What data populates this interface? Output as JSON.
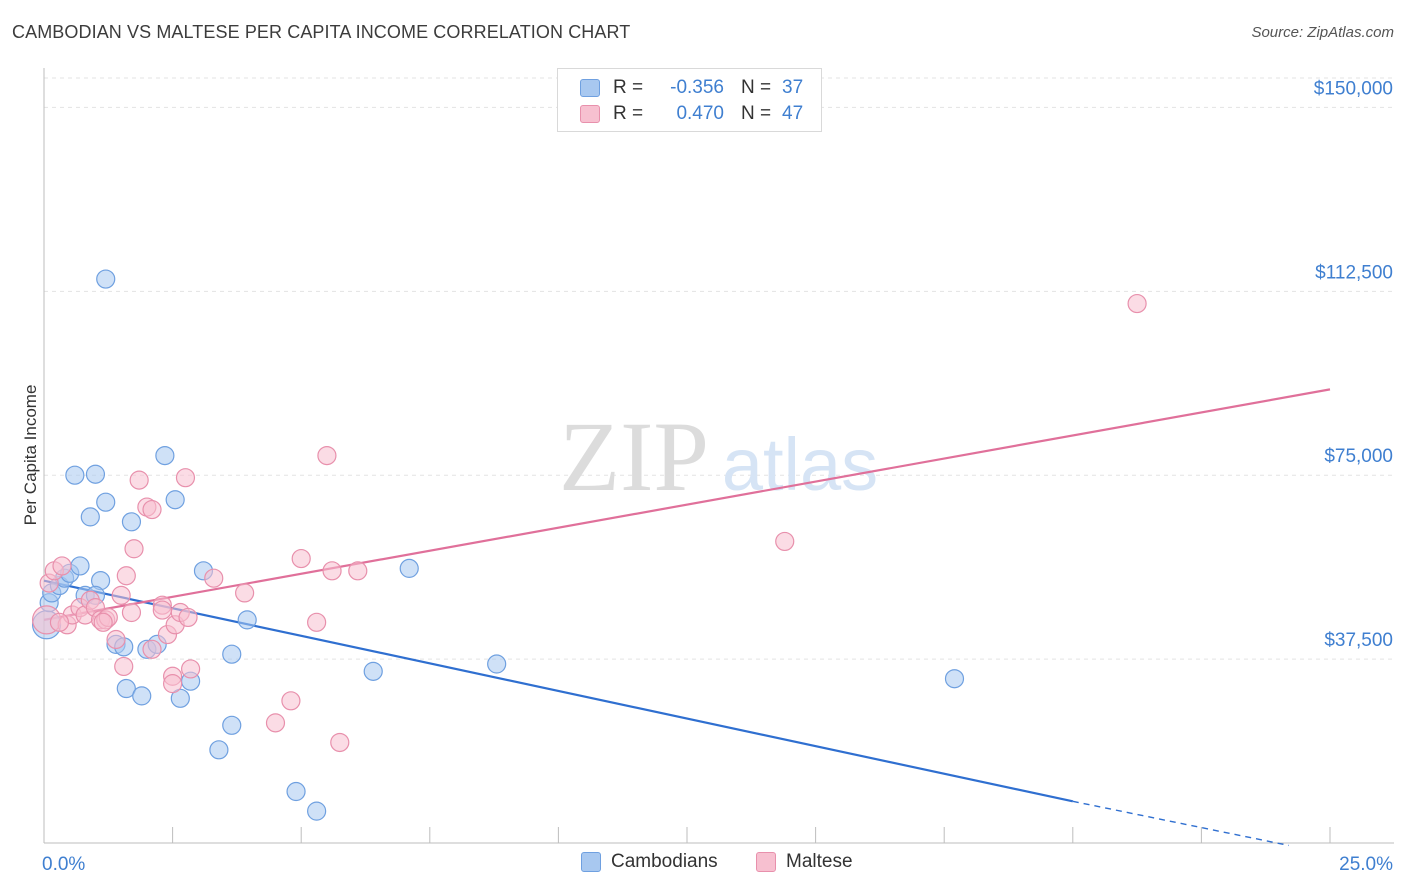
{
  "header": {
    "title": "CAMBODIAN VS MALTESE PER CAPITA INCOME CORRELATION CHART",
    "source": "Source: ZipAtlas.com"
  },
  "watermark": {
    "zip": "ZIP",
    "atlas": "atlas"
  },
  "legend": {
    "rows": [
      {
        "r_label": "R =",
        "r_value": "-0.356",
        "n_label": "N =",
        "n_value": "37",
        "color": "#a8c8f0",
        "border": "#6fa0e0"
      },
      {
        "r_label": "R =",
        "r_value": "0.470",
        "n_label": "N =",
        "n_value": "47",
        "color": "#f7c0d0",
        "border": "#e890ac"
      }
    ]
  },
  "bottom_legend": {
    "items": [
      {
        "label": "Cambodians",
        "color": "#a8c8f0",
        "border": "#6fa0e0"
      },
      {
        "label": "Maltese",
        "color": "#f7c0d0",
        "border": "#e890ac"
      }
    ]
  },
  "chart_data": {
    "type": "scatter",
    "title": "CAMBODIAN VS MALTESE PER CAPITA INCOME CORRELATION CHART",
    "xlabel": "",
    "ylabel": "Per Capita Income",
    "xlim": [
      0,
      25
    ],
    "ylim": [
      0,
      156000
    ],
    "x_tick_labels": [
      {
        "value": 0,
        "label": "0.0%"
      },
      {
        "value": 25,
        "label": "25.0%"
      }
    ],
    "y_tick_labels": [
      {
        "value": 37500,
        "label": "$37,500"
      },
      {
        "value": 75000,
        "label": "$75,000"
      },
      {
        "value": 112500,
        "label": "$112,500"
      },
      {
        "value": 150000,
        "label": "$150,000"
      }
    ],
    "x_minor_ticks": [
      2.5,
      5,
      7.5,
      10,
      12.5,
      15,
      17.5,
      20,
      22.5,
      25
    ],
    "series": [
      {
        "name": "Cambodians",
        "color": "#6fa0e0",
        "fill": "rgba(168,200,240,0.55)",
        "line_color": "#2f6fd0",
        "trend": {
          "x0": 0,
          "y0": 53500,
          "x1": 20,
          "y1": 8500,
          "dash_to_x": 24.2,
          "dash_to_y": -500
        },
        "points": [
          [
            0.05,
            44500,
            14
          ],
          [
            0.1,
            49000,
            9
          ],
          [
            0.15,
            51000,
            9
          ],
          [
            0.3,
            52500,
            9
          ],
          [
            0.4,
            54000,
            9
          ],
          [
            0.5,
            55000,
            9
          ],
          [
            0.6,
            75000,
            9
          ],
          [
            0.7,
            56500,
            9
          ],
          [
            0.8,
            50500,
            9
          ],
          [
            0.9,
            66500,
            9
          ],
          [
            1.0,
            75200,
            9
          ],
          [
            1.1,
            53500,
            9
          ],
          [
            1.2,
            69500,
            9
          ],
          [
            1.4,
            40500,
            9
          ],
          [
            1.55,
            40000,
            9
          ],
          [
            1.6,
            31500,
            9
          ],
          [
            1.7,
            65500,
            9
          ],
          [
            1.9,
            30000,
            9
          ],
          [
            2.0,
            39500,
            9
          ],
          [
            2.2,
            40500,
            9
          ],
          [
            2.35,
            79000,
            9
          ],
          [
            2.55,
            70000,
            9
          ],
          [
            2.65,
            29500,
            9
          ],
          [
            2.85,
            33000,
            9
          ],
          [
            3.1,
            55500,
            9
          ],
          [
            3.4,
            19000,
            9
          ],
          [
            3.65,
            24000,
            9
          ],
          [
            3.65,
            38500,
            9
          ],
          [
            3.95,
            45500,
            9
          ],
          [
            4.9,
            10500,
            9
          ],
          [
            5.3,
            6500,
            9
          ],
          [
            6.4,
            35000,
            9
          ],
          [
            7.1,
            56000,
            9
          ],
          [
            8.8,
            36500,
            9
          ],
          [
            17.7,
            33500,
            9
          ],
          [
            1.2,
            115000,
            9
          ],
          [
            1.0,
            50500,
            9
          ]
        ]
      },
      {
        "name": "Maltese",
        "color": "#e890ac",
        "fill": "rgba(247,192,208,0.55)",
        "line_color": "#e0709a",
        "trend": {
          "x0": 0,
          "y0": 45500,
          "x1": 25,
          "y1": 92500
        },
        "points": [
          [
            0.05,
            45500,
            14
          ],
          [
            0.1,
            53000,
            9
          ],
          [
            0.2,
            55500,
            9
          ],
          [
            0.35,
            56500,
            9
          ],
          [
            0.45,
            44500,
            9
          ],
          [
            0.55,
            46500,
            9
          ],
          [
            0.7,
            48000,
            9
          ],
          [
            0.8,
            46500,
            9
          ],
          [
            0.9,
            49500,
            9
          ],
          [
            1.0,
            48000,
            9
          ],
          [
            1.1,
            45500,
            9
          ],
          [
            1.2,
            45500,
            9
          ],
          [
            1.25,
            46000,
            9
          ],
          [
            1.4,
            41500,
            9
          ],
          [
            1.5,
            50500,
            9
          ],
          [
            1.55,
            36000,
            9
          ],
          [
            1.6,
            54500,
            9
          ],
          [
            1.7,
            47000,
            9
          ],
          [
            1.75,
            60000,
            9
          ],
          [
            1.85,
            74000,
            9
          ],
          [
            2.0,
            68500,
            9
          ],
          [
            2.1,
            39500,
            9
          ],
          [
            2.1,
            68000,
            9
          ],
          [
            2.3,
            48500,
            9
          ],
          [
            2.4,
            42500,
            9
          ],
          [
            2.5,
            34000,
            9
          ],
          [
            2.5,
            32500,
            9
          ],
          [
            2.55,
            44500,
            9
          ],
          [
            2.65,
            47000,
            9
          ],
          [
            2.75,
            74500,
            9
          ],
          [
            2.8,
            46000,
            9
          ],
          [
            2.85,
            35500,
            9
          ],
          [
            3.3,
            54000,
            9
          ],
          [
            3.9,
            51000,
            9
          ],
          [
            4.5,
            24500,
            9
          ],
          [
            4.8,
            29000,
            9
          ],
          [
            5.0,
            58000,
            9
          ],
          [
            5.3,
            45000,
            9
          ],
          [
            5.5,
            79000,
            9
          ],
          [
            5.6,
            55500,
            9
          ],
          [
            5.75,
            20500,
            9
          ],
          [
            6.1,
            55500,
            9
          ],
          [
            14.4,
            61500,
            9
          ],
          [
            21.25,
            110000,
            9
          ],
          [
            0.3,
            45000,
            9
          ],
          [
            1.15,
            45000,
            9
          ],
          [
            2.3,
            47500,
            9
          ]
        ]
      }
    ]
  }
}
